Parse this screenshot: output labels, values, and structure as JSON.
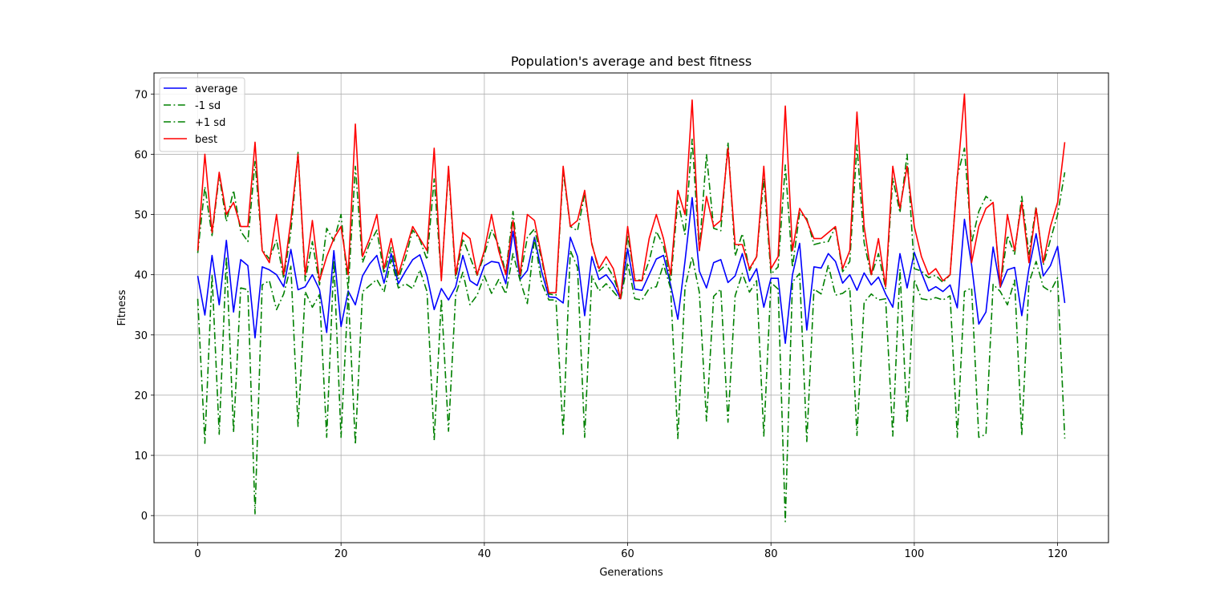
{
  "chart_data": {
    "type": "line",
    "title": "Population's average and best fitness",
    "xlabel": "Generations",
    "ylabel": "Fitness",
    "xlim": [
      -6.1,
      127.1
    ],
    "ylim": [
      -4.5,
      73.5
    ],
    "x_ticks": [
      0,
      20,
      40,
      60,
      80,
      100,
      120
    ],
    "y_ticks": [
      0,
      10,
      20,
      30,
      40,
      50,
      60,
      70
    ],
    "grid": true,
    "legend_position": "top-left",
    "x": [
      0,
      1,
      2,
      3,
      4,
      5,
      6,
      7,
      8,
      9,
      10,
      11,
      12,
      13,
      14,
      15,
      16,
      17,
      18,
      19,
      20,
      21,
      22,
      23,
      24,
      25,
      26,
      27,
      28,
      29,
      30,
      31,
      32,
      33,
      34,
      35,
      36,
      37,
      38,
      39,
      40,
      41,
      42,
      43,
      44,
      45,
      46,
      47,
      48,
      49,
      50,
      51,
      52,
      53,
      54,
      55,
      56,
      57,
      58,
      59,
      60,
      61,
      62,
      63,
      64,
      65,
      66,
      67,
      68,
      69,
      70,
      71,
      72,
      73,
      74,
      75,
      76,
      77,
      78,
      79,
      80,
      81,
      82,
      83,
      84,
      85,
      86,
      87,
      88,
      89,
      90,
      91,
      92,
      93,
      94,
      95,
      96,
      97,
      98,
      99,
      100,
      101,
      102,
      103,
      104,
      105,
      106,
      107,
      108,
      109,
      110,
      111,
      112,
      113,
      114,
      115,
      116,
      117,
      118,
      119,
      120,
      121
    ],
    "series": [
      {
        "name": "average",
        "color": "#0000ff",
        "style": "solid",
        "values": [
          39.8,
          33.3,
          43.2,
          35,
          45.7,
          33.8,
          42.5,
          41.5,
          29.5,
          41.3,
          40.8,
          40,
          38,
          44.2,
          37.5,
          38,
          40,
          37.5,
          30.4,
          44,
          31.4,
          37.3,
          35,
          39.8,
          41.8,
          43.2,
          38.6,
          43.5,
          38.5,
          40.6,
          42.5,
          43.3,
          39.8,
          34.2,
          37.7,
          35.8,
          38,
          43.2,
          39,
          38.2,
          41.5,
          42.2,
          42,
          38.5,
          47.2,
          39.2,
          40.7,
          46.2,
          40.5,
          36.3,
          36.2,
          35.3,
          46.2,
          43,
          33.2,
          43,
          39.2,
          40,
          38.4,
          36,
          44.3,
          37.6,
          37.4,
          40,
          42.6,
          43.2,
          38.3,
          32.6,
          42.2,
          52.8,
          40.6,
          37.8,
          42,
          42.5,
          38.7,
          39.8,
          43.5,
          38.9,
          41,
          34.6,
          39.4,
          39.4,
          28.6,
          40,
          45.2,
          30.8,
          41.3,
          41.1,
          43.5,
          42.2,
          38.6,
          40,
          37.4,
          40.3,
          38.3,
          39.6,
          36.8,
          34.6,
          43.5,
          37.8,
          43.7,
          40.3,
          37.3,
          38,
          37.2,
          38.3,
          34.5,
          49.2,
          41.6,
          31.8,
          33.8,
          44.6,
          37.9,
          40.8,
          41.2,
          33.2,
          41,
          46.8,
          39.8,
          41.5,
          44.7,
          35.3
        ]
      },
      {
        "name": "-1 sd",
        "color": "#008000",
        "style": "dashdot",
        "values": [
          36,
          12,
          40,
          13.5,
          43,
          13.8,
          37.8,
          37.5,
          0.3,
          38.3,
          39,
          34.2,
          36.8,
          41.4,
          14.8,
          37.2,
          34.6,
          36.7,
          13,
          42.4,
          13,
          37.1,
          11.8,
          37.2,
          38.2,
          39.2,
          37.1,
          42.5,
          37.8,
          38.5,
          37.7,
          40.8,
          37.2,
          12.5,
          36,
          14,
          36.7,
          40.4,
          35,
          36.6,
          39.8,
          36.9,
          39.2,
          36.8,
          43.5,
          39,
          35.2,
          46,
          38.6,
          35.8,
          35.8,
          13.5,
          44,
          41.2,
          13,
          39.8,
          37.3,
          38.5,
          37.2,
          35.8,
          42,
          36,
          35.8,
          37.7,
          38,
          41.7,
          37.7,
          12.8,
          37.8,
          43,
          37.1,
          15.7,
          36.4,
          37.6,
          15.5,
          36.5,
          40.2,
          37.1,
          39,
          13.2,
          38.7,
          37.6,
          -1,
          38.8,
          40.2,
          12.3,
          37.6,
          36.8,
          41.6,
          36.6,
          36.9,
          37.8,
          13.3,
          35.4,
          36.8,
          35.8,
          36,
          13.2,
          40.9,
          15.4,
          39.2,
          36,
          35.8,
          36.2,
          35.8,
          36.5,
          13,
          37.2,
          37.8,
          13,
          13.5,
          38.4,
          37.2,
          35,
          39.1,
          13.3,
          38.7,
          42.2,
          38,
          37.2,
          39.5,
          12.8
        ]
      },
      {
        "name": "+1 sd",
        "color": "#008000",
        "style": "dashdot",
        "values": [
          43.6,
          54.6,
          46.5,
          56.5,
          48.8,
          54,
          47.2,
          45.5,
          58.8,
          44.2,
          42.6,
          45.8,
          39.4,
          47.1,
          60.3,
          39,
          45.5,
          38.3,
          47.7,
          45.6,
          50,
          37.5,
          58,
          42,
          45.2,
          47.4,
          40.2,
          44.5,
          39.3,
          42.8,
          47.4,
          45.8,
          42.5,
          55.9,
          39.4,
          57.6,
          39.3,
          46,
          42.9,
          39.9,
          43.3,
          47.5,
          44.9,
          40.3,
          50.5,
          39.5,
          46.2,
          47.6,
          42.5,
          36.8,
          36.6,
          57.2,
          48,
          47.3,
          53.4,
          45.2,
          40.6,
          41.7,
          39.7,
          36.2,
          46.5,
          39.3,
          39,
          42.3,
          47.2,
          44.8,
          38.8,
          52.3,
          46.7,
          62.5,
          44,
          60,
          47.7,
          47.3,
          62,
          43.1,
          46.8,
          40.7,
          43,
          56,
          40.1,
          41.3,
          58.2,
          41.2,
          50.3,
          49.3,
          45,
          45.3,
          45.5,
          47.9,
          40.5,
          42.2,
          61.5,
          45.3,
          39.8,
          43.5,
          37.7,
          56,
          50.3,
          60,
          41,
          40.6,
          39.5,
          39.9,
          38.7,
          40,
          56.3,
          61,
          45.3,
          50.5,
          53,
          52,
          37.9,
          46.5,
          43.4,
          53,
          43.4,
          51.3,
          41.6,
          45.8,
          50,
          57
        ]
      },
      {
        "name": "best",
        "color": "#ff0000",
        "style": "solid",
        "values": [
          44,
          60,
          47,
          57,
          50,
          52,
          48,
          48,
          62,
          44,
          42,
          50,
          40,
          49,
          60,
          40,
          49,
          39,
          43,
          46,
          48,
          40,
          65,
          43,
          46,
          50,
          41,
          46,
          40,
          44,
          48,
          46,
          44,
          61,
          39,
          58,
          40,
          47,
          46,
          40,
          44,
          50,
          44,
          40,
          49,
          40,
          50,
          49,
          43,
          37,
          37,
          58,
          48,
          49,
          54,
          45,
          41,
          43,
          41,
          36,
          48,
          39,
          39,
          46,
          50,
          46,
          40,
          54,
          50,
          69,
          44,
          53,
          48,
          49,
          61,
          45,
          45,
          41,
          43,
          58,
          41,
          43,
          68,
          44,
          51,
          49,
          46,
          46,
          47,
          48,
          41,
          44,
          67,
          48,
          40,
          46,
          38,
          58,
          51,
          58,
          48,
          43,
          40,
          41,
          39,
          40,
          56,
          70,
          42,
          48,
          51,
          52,
          38,
          50,
          44,
          52,
          42,
          51,
          42,
          48,
          52,
          62
        ]
      }
    ]
  }
}
